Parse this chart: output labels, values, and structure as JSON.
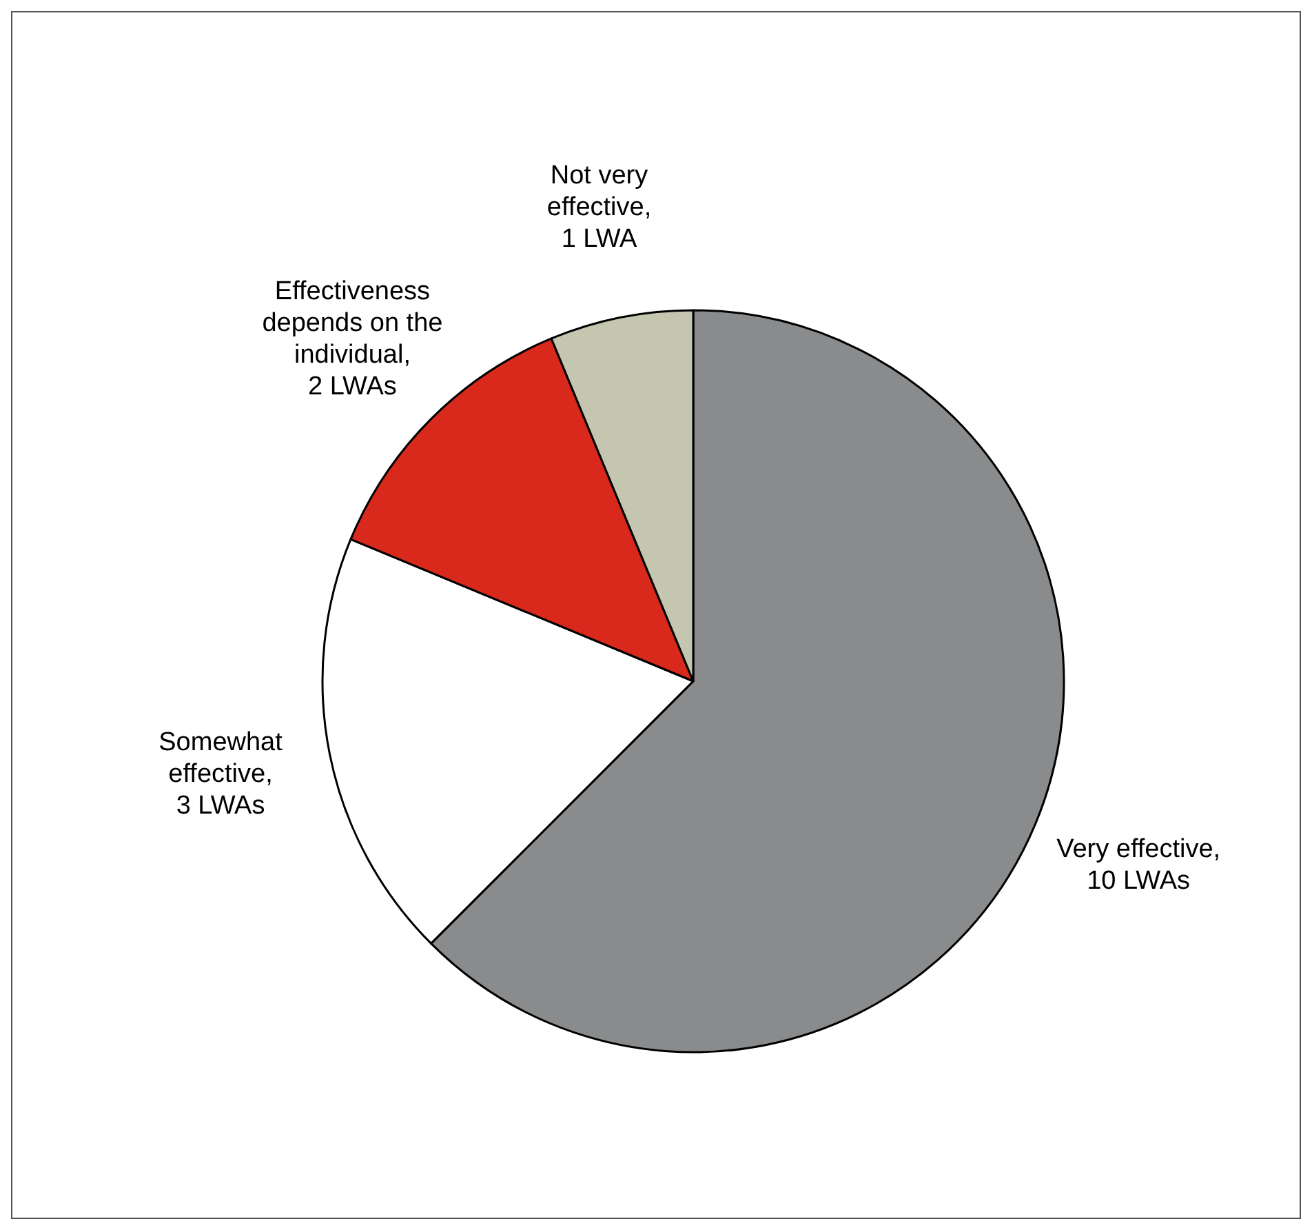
{
  "chart_data": {
    "type": "pie",
    "categories": [
      "Very effective, 10 LWAs",
      "Somewhat effective, 3 LWAs",
      "Effectiveness depends on the individual, 2 LWAs",
      "Not very effective, 1 LWA"
    ],
    "values": [
      10,
      3,
      2,
      1
    ],
    "colors": [
      "#898b8c",
      "#ffffff",
      "#d9291c",
      "#c5c6b0"
    ]
  }
}
